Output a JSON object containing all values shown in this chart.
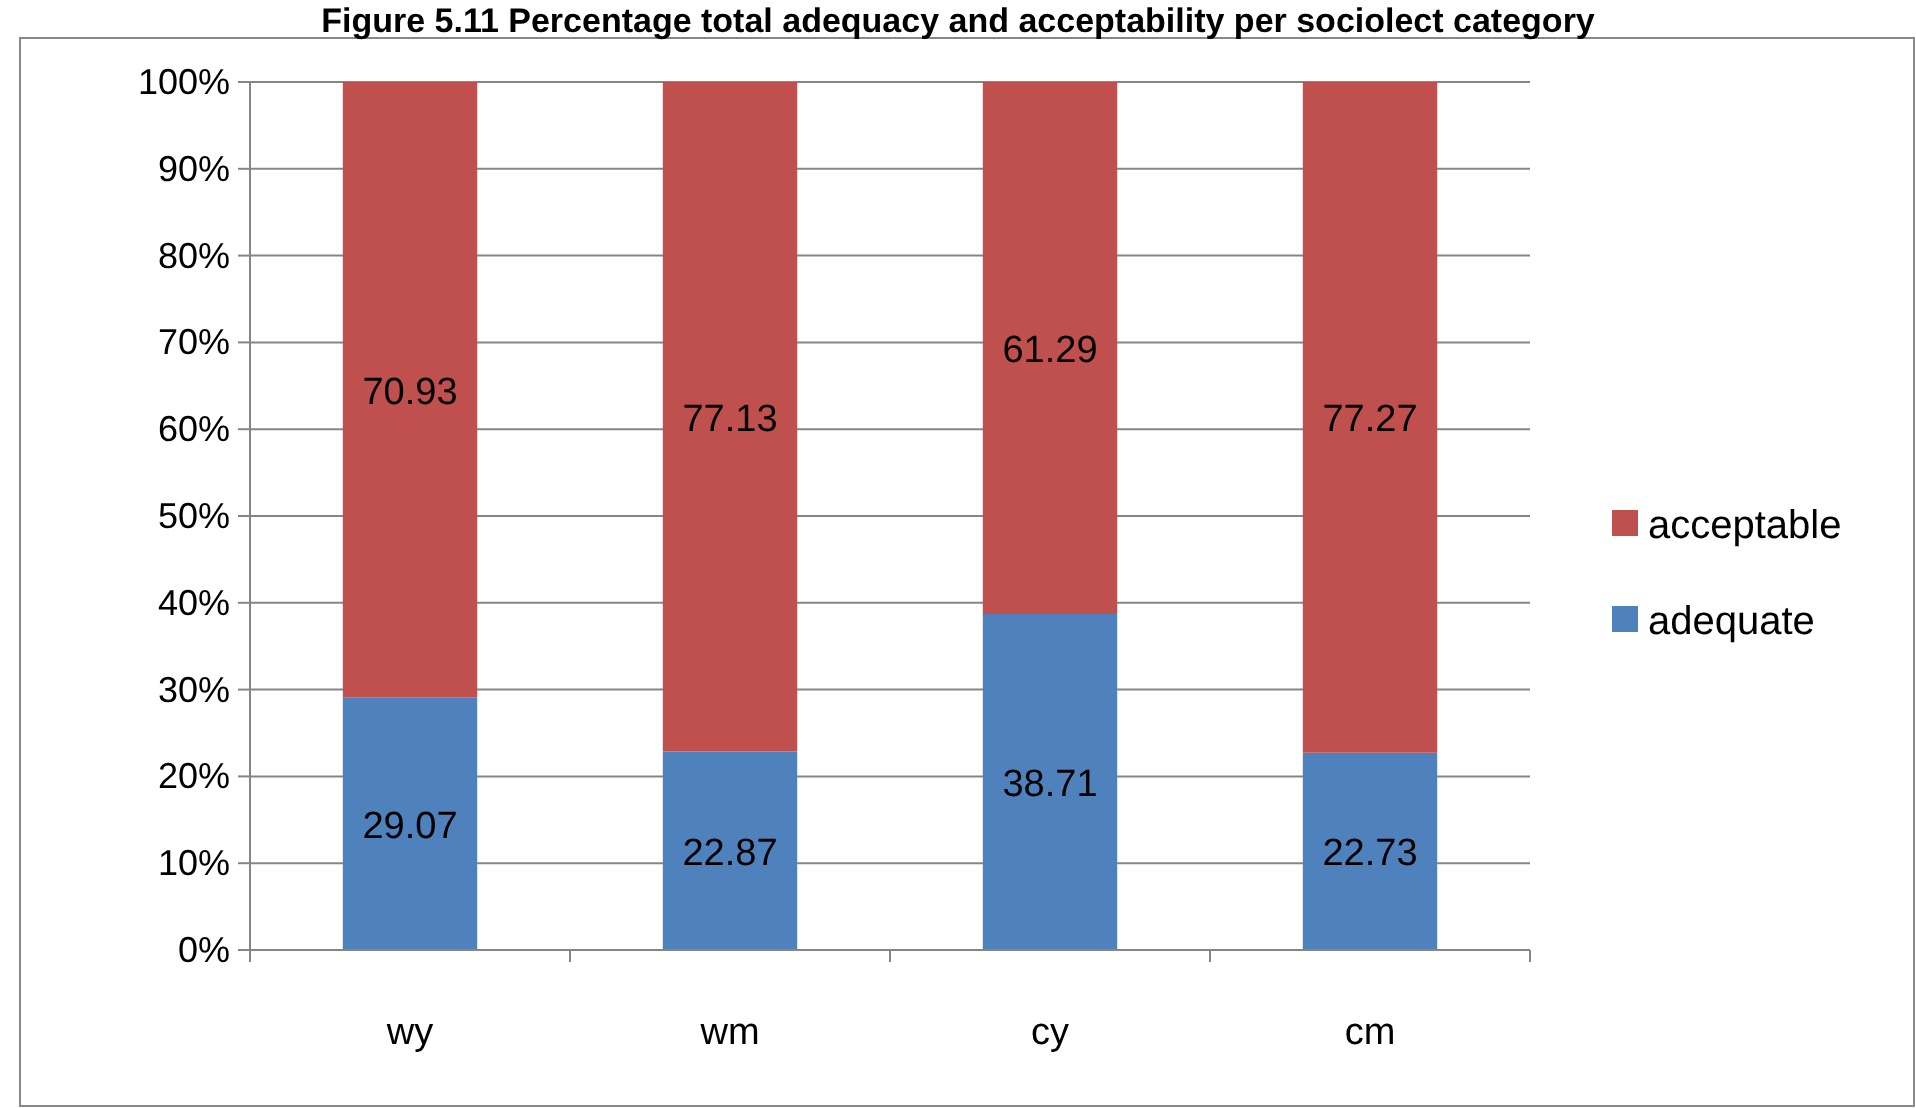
{
  "chart_data": {
    "type": "bar",
    "title": "Figure 5.11 Percentage total adequacy and acceptability per sociolect category",
    "categories": [
      "wy",
      "wm",
      "cy",
      "cm"
    ],
    "stacked": true,
    "series": [
      {
        "name": "adequate",
        "color": "#4f81bd",
        "values": [
          29.07,
          22.87,
          38.71,
          22.73
        ]
      },
      {
        "name": "acceptable",
        "color": "#c0504d",
        "values": [
          70.93,
          77.13,
          61.29,
          77.27
        ]
      }
    ],
    "ylim": [
      0,
      100
    ],
    "yticks": [
      {
        "value": 0,
        "label": "0%"
      },
      {
        "value": 10,
        "label": "10%"
      },
      {
        "value": 20,
        "label": "20%"
      },
      {
        "value": 30,
        "label": "30%"
      },
      {
        "value": 40,
        "label": "40%"
      },
      {
        "value": 50,
        "label": "50%"
      },
      {
        "value": 60,
        "label": "60%"
      },
      {
        "value": 70,
        "label": "70%"
      },
      {
        "value": 80,
        "label": "80%"
      },
      {
        "value": 90,
        "label": "90%"
      },
      {
        "value": 100,
        "label": "100%"
      }
    ],
    "grid": "y",
    "legend": "right",
    "data_labels": true
  }
}
